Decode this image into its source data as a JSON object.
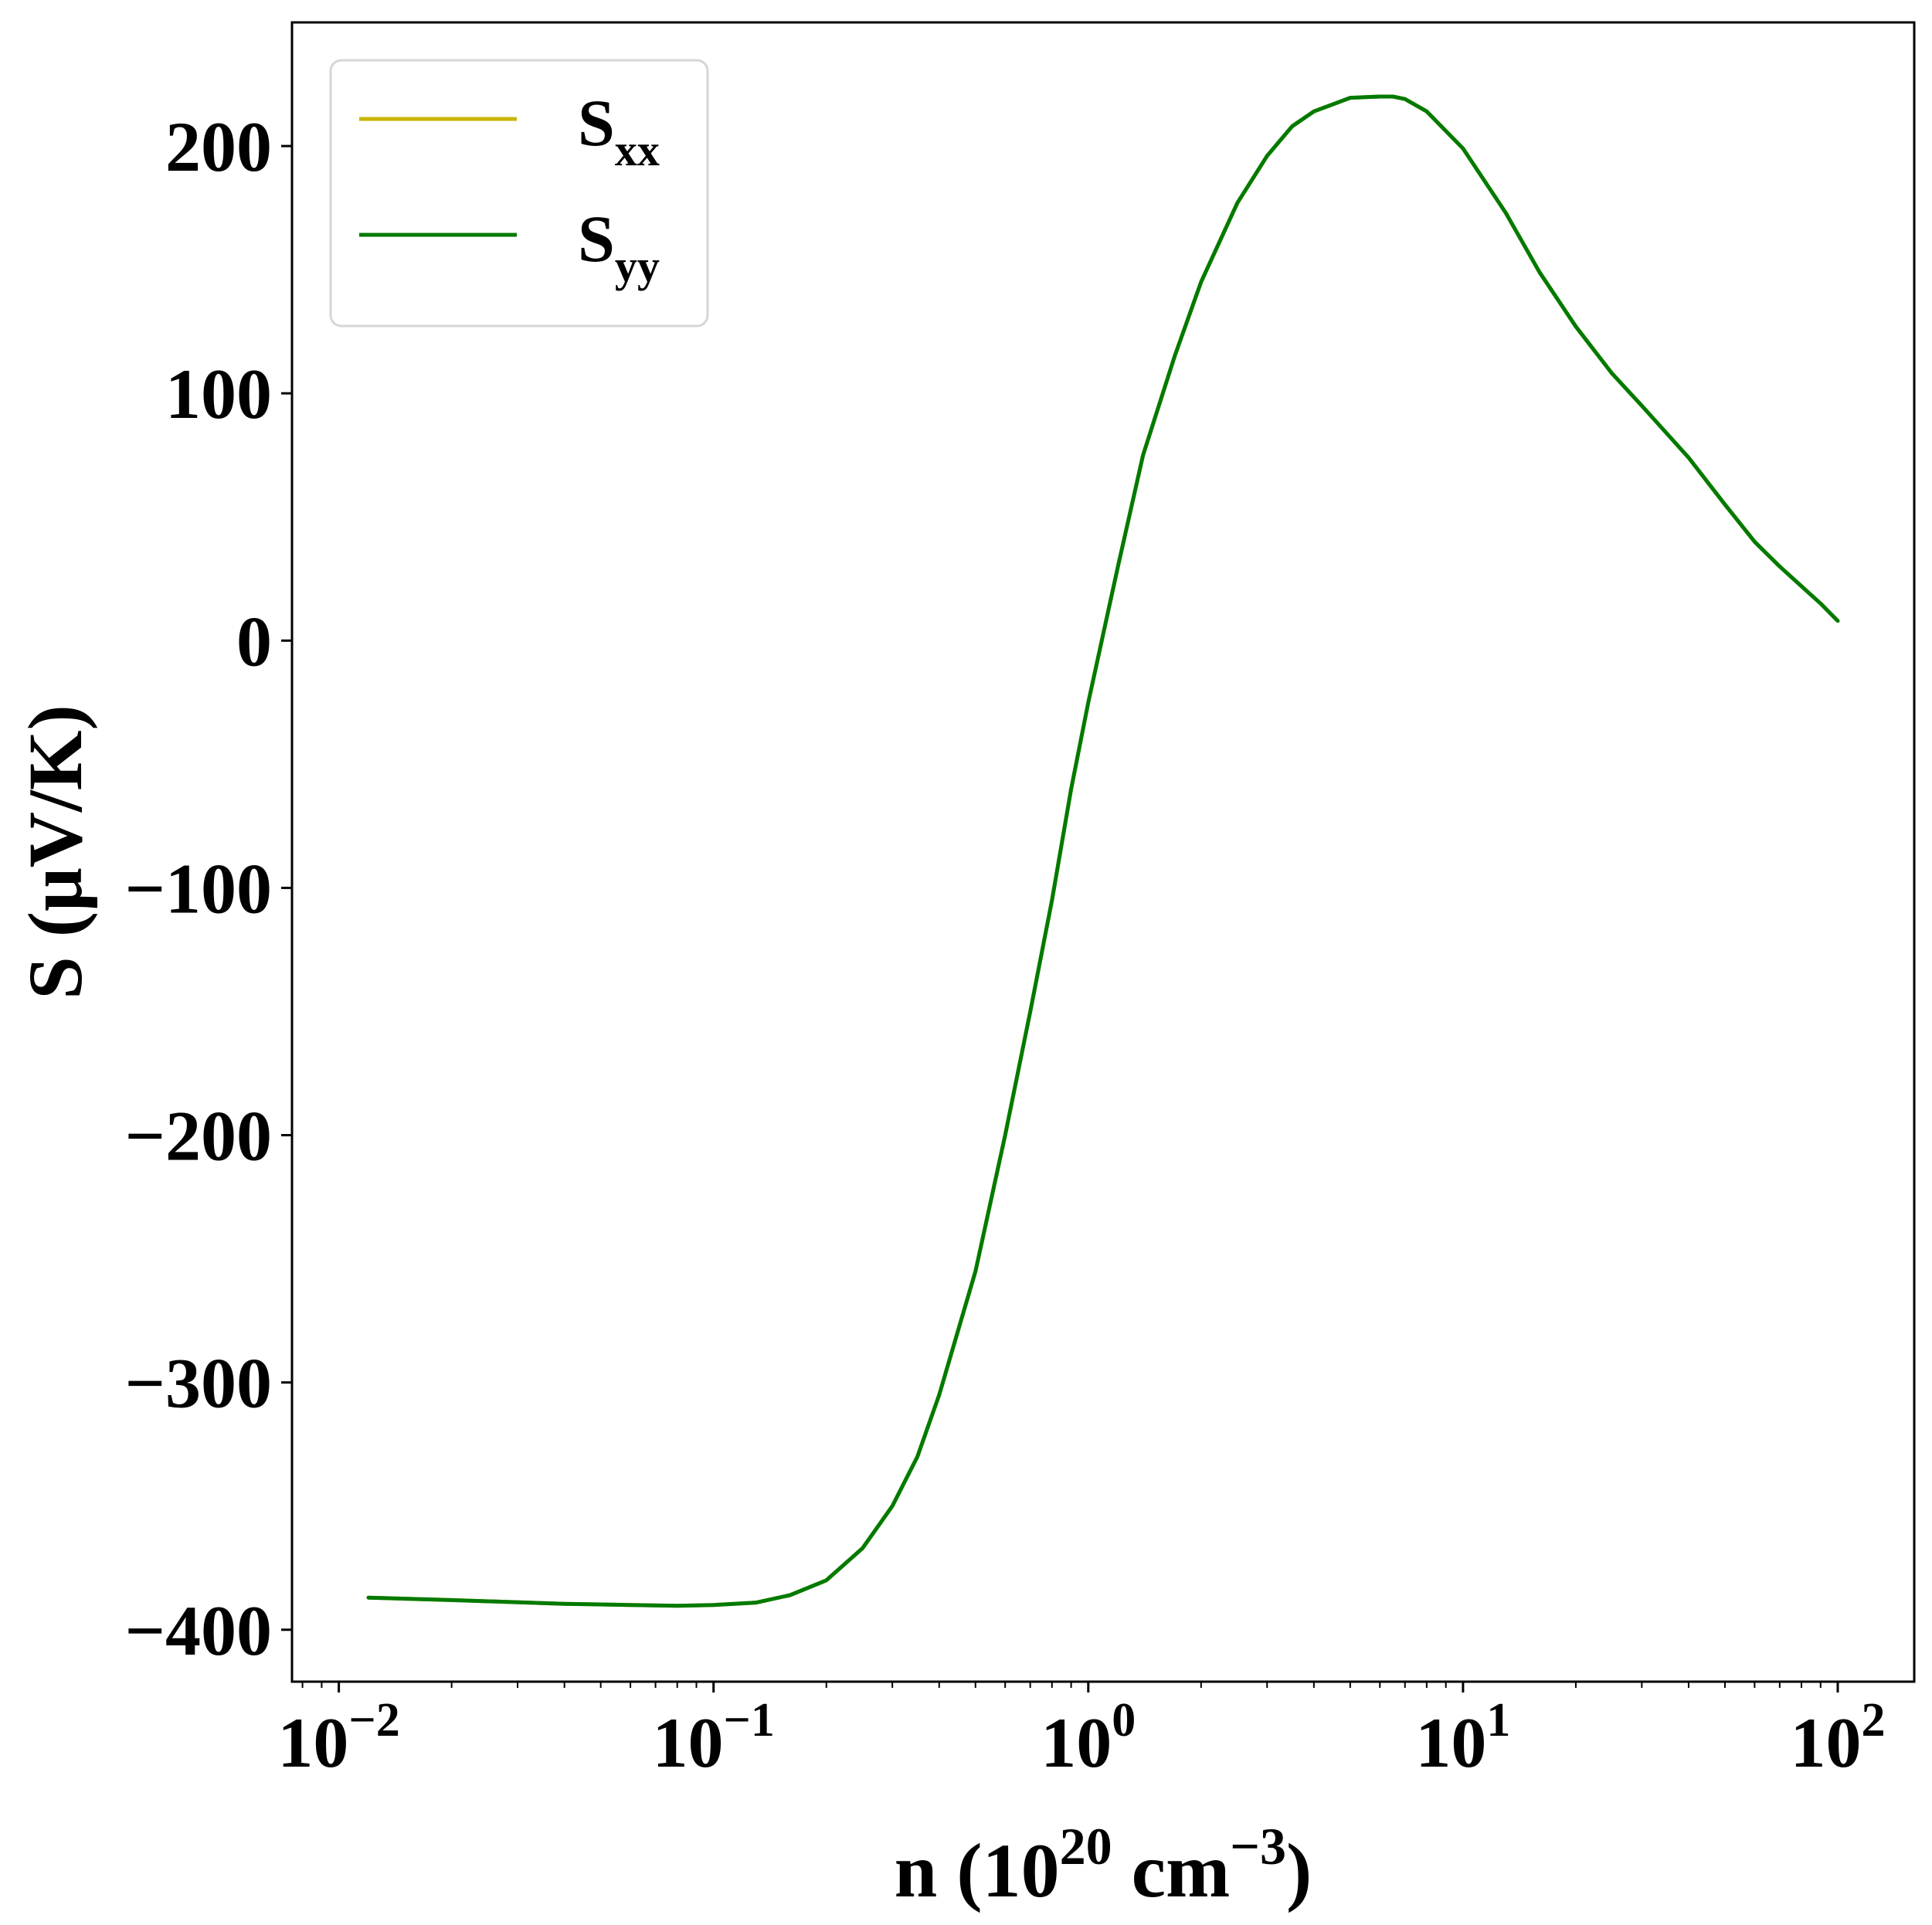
{
  "chart_data": {
    "type": "line",
    "xscale": "log",
    "xlim": [
      0.0075,
      160
    ],
    "ylim": [
      -421,
      250
    ],
    "xlabel": {
      "base": "n (10",
      "exp1": "20",
      "mid": " cm",
      "exp2": "−3",
      "tail": ")"
    },
    "ylabel": "S (μV/K)",
    "grid": false,
    "legend_position": "upper left",
    "x_ticks": [
      {
        "value": 0.01,
        "base": "10",
        "exp": "−2"
      },
      {
        "value": 0.1,
        "base": "10",
        "exp": "−1"
      },
      {
        "value": 1,
        "base": "10",
        "exp": "0"
      },
      {
        "value": 10,
        "base": "10",
        "exp": "1"
      },
      {
        "value": 100,
        "base": "10",
        "exp": "2"
      }
    ],
    "y_ticks": [
      {
        "value": 200,
        "label": "200"
      },
      {
        "value": 100,
        "label": "100"
      },
      {
        "value": 0,
        "label": "0"
      },
      {
        "value": -100,
        "label": "−100"
      },
      {
        "value": -200,
        "label": "−200"
      },
      {
        "value": -300,
        "label": "−300"
      },
      {
        "value": -400,
        "label": "−400"
      }
    ],
    "x": [
      0.012,
      0.02,
      0.04,
      0.06,
      0.08,
      0.1,
      0.13,
      0.16,
      0.2,
      0.25,
      0.3,
      0.35,
      0.4,
      0.5,
      0.6,
      0.7,
      0.8,
      0.9,
      1.0,
      1.2,
      1.4,
      1.7,
      2.0,
      2.5,
      3.0,
      3.5,
      4.0,
      5.0,
      6.0,
      6.5,
      7.0,
      8.0,
      10,
      13,
      16,
      20,
      25,
      30,
      40,
      50,
      60,
      70,
      80,
      90,
      100
    ],
    "series": [
      {
        "name": {
          "base": "S",
          "sub": "xx"
        },
        "color": "#c8b400",
        "values": [
          -387,
          -388,
          -389.5,
          -390,
          -390.3,
          -390,
          -389,
          -386,
          -380,
          -367,
          -350,
          -330,
          -305,
          -255,
          -200,
          -150,
          -105,
          -60,
          -25,
          30,
          75,
          115,
          145,
          177,
          196,
          208,
          214,
          219.5,
          220,
          220,
          219,
          214,
          199,
          173,
          149,
          127,
          108,
          95,
          74,
          55,
          40,
          30,
          22,
          15,
          8
        ]
      },
      {
        "name": {
          "base": "S",
          "sub": "yy"
        },
        "color": "#007a00",
        "values": [
          -387,
          -388,
          -389.5,
          -390,
          -390.3,
          -390,
          -389,
          -386,
          -380,
          -367,
          -350,
          -330,
          -305,
          -255,
          -200,
          -150,
          -105,
          -60,
          -25,
          30,
          75,
          115,
          145,
          177,
          196,
          208,
          214,
          219.5,
          220,
          220,
          219,
          214,
          199,
          173,
          149,
          127,
          108,
          95,
          74,
          55,
          40,
          30,
          22,
          15,
          8
        ]
      }
    ]
  }
}
